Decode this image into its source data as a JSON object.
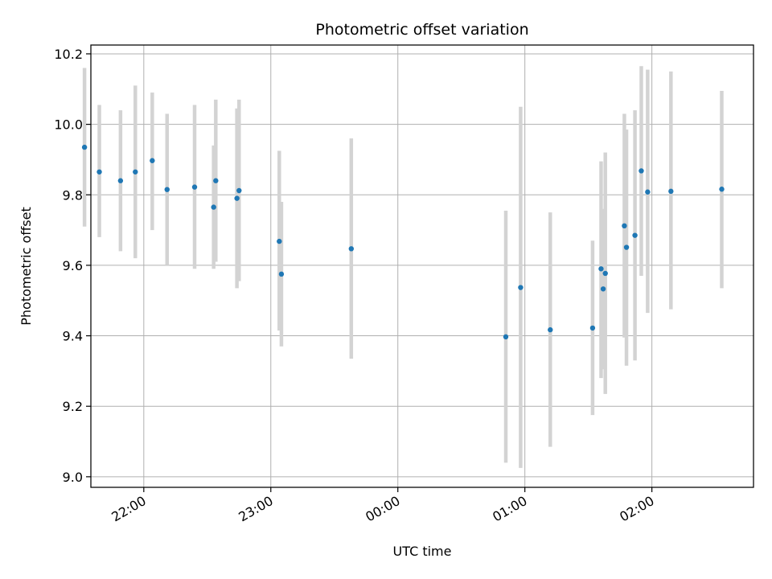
{
  "chart_data": {
    "type": "scatter",
    "title": "Photometric offset variation",
    "xlabel": "UTC time",
    "ylabel": "Photometric offset",
    "grid": true,
    "x_axis_kind": "time",
    "xlim": [
      "21:35",
      "02:48"
    ],
    "ylim": [
      8.97,
      10.225
    ],
    "x_ticks": [
      "22:00",
      "23:00",
      "00:00",
      "01:00",
      "02:00"
    ],
    "y_ticks": [
      "9.0",
      "9.2",
      "9.4",
      "9.6",
      "9.8",
      "10.0",
      "10.2"
    ],
    "colors": {
      "point": "#1f77b4",
      "errorbar": "#d3d3d3",
      "grid": "#b0b0b0"
    },
    "series": [
      {
        "points": [
          {
            "x": "21:32",
            "y": 9.935,
            "lo": 9.71,
            "hi": 10.16
          },
          {
            "x": "21:39",
            "y": 9.865,
            "lo": 9.68,
            "hi": 10.055
          },
          {
            "x": "21:49",
            "y": 9.84,
            "lo": 9.64,
            "hi": 10.04
          },
          {
            "x": "21:56",
            "y": 9.865,
            "lo": 9.62,
            "hi": 10.11
          },
          {
            "x": "22:04",
            "y": 9.897,
            "lo": 9.7,
            "hi": 10.09
          },
          {
            "x": "22:11",
            "y": 9.815,
            "lo": 9.6,
            "hi": 10.03
          },
          {
            "x": "22:24",
            "y": 9.822,
            "lo": 9.59,
            "hi": 10.055
          },
          {
            "x": "22:33",
            "y": 9.765,
            "lo": 9.59,
            "hi": 9.94
          },
          {
            "x": "22:34",
            "y": 9.84,
            "lo": 9.61,
            "hi": 10.07
          },
          {
            "x": "22:44",
            "y": 9.79,
            "lo": 9.535,
            "hi": 10.045
          },
          {
            "x": "22:45",
            "y": 9.812,
            "lo": 9.555,
            "hi": 10.07
          },
          {
            "x": "23:04",
            "y": 9.668,
            "lo": 9.415,
            "hi": 9.925
          },
          {
            "x": "23:05",
            "y": 9.575,
            "lo": 9.37,
            "hi": 9.78
          },
          {
            "x": "23:38",
            "y": 9.647,
            "lo": 9.335,
            "hi": 9.96
          },
          {
            "x": "00:51",
            "y": 9.397,
            "lo": 9.04,
            "hi": 9.755
          },
          {
            "x": "00:58",
            "y": 9.537,
            "lo": 9.025,
            "hi": 10.05
          },
          {
            "x": "01:12",
            "y": 9.417,
            "lo": 9.085,
            "hi": 9.75
          },
          {
            "x": "01:32",
            "y": 9.422,
            "lo": 9.175,
            "hi": 9.67
          },
          {
            "x": "01:36",
            "y": 9.59,
            "lo": 9.28,
            "hi": 9.895
          },
          {
            "x": "01:37",
            "y": 9.533,
            "lo": 9.305,
            "hi": 9.76
          },
          {
            "x": "01:38",
            "y": 9.577,
            "lo": 9.235,
            "hi": 9.92
          },
          {
            "x": "01:47",
            "y": 9.712,
            "lo": 9.395,
            "hi": 10.03
          },
          {
            "x": "01:48",
            "y": 9.651,
            "lo": 9.315,
            "hi": 9.985
          },
          {
            "x": "01:52",
            "y": 9.685,
            "lo": 9.33,
            "hi": 10.04
          },
          {
            "x": "01:55",
            "y": 9.868,
            "lo": 9.57,
            "hi": 10.165
          },
          {
            "x": "01:58",
            "y": 9.808,
            "lo": 9.465,
            "hi": 10.155
          },
          {
            "x": "02:09",
            "y": 9.81,
            "lo": 9.475,
            "hi": 10.15
          },
          {
            "x": "02:33",
            "y": 9.816,
            "lo": 9.535,
            "hi": 10.095
          }
        ]
      }
    ]
  }
}
